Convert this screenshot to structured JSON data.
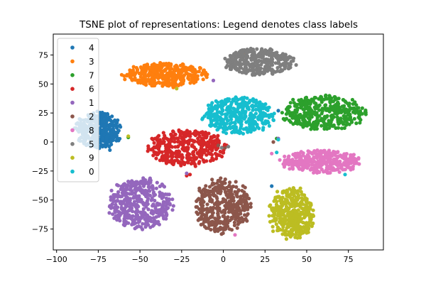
{
  "chart_data": {
    "type": "scatter",
    "title": "TSNE plot of representations: Legend denotes class labels",
    "xlabel": "",
    "ylabel": "",
    "xlim": [
      -102,
      96
    ],
    "ylim": [
      -93,
      93
    ],
    "xticks": [
      -100,
      -75,
      -50,
      -25,
      0,
      25,
      50,
      75
    ],
    "yticks": [
      -75,
      -50,
      -25,
      0,
      25,
      50,
      75
    ],
    "xtick_labels": [
      "−100",
      "−75",
      "−50",
      "−25",
      "0",
      "25",
      "50",
      "75"
    ],
    "ytick_labels": [
      "−75",
      "−50",
      "−25",
      "0",
      "25",
      "50",
      "75"
    ],
    "grid": false,
    "legend_position": "upper-left",
    "legend_order": [
      "4",
      "3",
      "7",
      "6",
      "1",
      "2",
      "8",
      "5",
      "9",
      "0"
    ],
    "series": [
      {
        "name": "4",
        "color": "#1f77b4",
        "clusters": [
          {
            "cx": -75,
            "cy": 10,
            "rx": 14,
            "ry": 16,
            "n": 380
          }
        ],
        "stray": [
          [
            33,
            27
          ],
          [
            29,
            -38
          ],
          [
            -68,
            -7
          ]
        ]
      },
      {
        "name": "3",
        "color": "#ff7f0e",
        "clusters": [
          {
            "cx": -35,
            "cy": 58,
            "rx": 26,
            "ry": 10,
            "n": 360
          }
        ],
        "stray": [
          [
            12,
            77
          ],
          [
            -30,
            47
          ]
        ]
      },
      {
        "name": "7",
        "color": "#2ca02c",
        "clusters": [
          {
            "cx": 60,
            "cy": 25,
            "rx": 26,
            "ry": 15,
            "n": 380
          }
        ],
        "stray": [
          [
            32,
            3
          ],
          [
            -57,
            4
          ]
        ]
      },
      {
        "name": "6",
        "color": "#d62728",
        "clusters": [
          {
            "cx": -22,
            "cy": -5,
            "rx": 24,
            "ry": 16,
            "n": 380
          }
        ],
        "stray": [
          [
            -20,
            -28
          ],
          [
            -22,
            -29
          ]
        ]
      },
      {
        "name": "1",
        "color": "#9467bd",
        "clusters": [
          {
            "cx": -50,
            "cy": -53,
            "rx": 20,
            "ry": 23,
            "n": 420
          }
        ],
        "stray": [
          [
            -6,
            53
          ],
          [
            33,
            3
          ],
          [
            -22,
            -27
          ]
        ]
      },
      {
        "name": "2",
        "color": "#8c564b",
        "clusters": [
          {
            "cx": -1,
            "cy": -55,
            "rx": 18,
            "ry": 24,
            "n": 380
          }
        ],
        "stray": [
          [
            -3,
            -3
          ],
          [
            30,
            0
          ],
          [
            1,
            -5
          ]
        ]
      },
      {
        "name": "8",
        "color": "#e377c2",
        "clusters": [
          {
            "cx": 59,
            "cy": -17,
            "rx": 25,
            "ry": 10,
            "n": 340
          }
        ],
        "stray": [
          [
            7,
            -80
          ],
          [
            29,
            -10
          ]
        ]
      },
      {
        "name": "5",
        "color": "#7f7f7f",
        "clusters": [
          {
            "cx": 22,
            "cy": 69,
            "rx": 22,
            "ry": 12,
            "n": 340
          }
        ],
        "stray": [
          [
            -1,
            -5
          ],
          [
            3,
            -4
          ]
        ]
      },
      {
        "name": "9",
        "color": "#bcbd22",
        "clusters": [
          {
            "cx": 41,
            "cy": -62,
            "rx": 14,
            "ry": 23,
            "n": 400
          }
        ],
        "stray": [
          [
            -57,
            5
          ],
          [
            -28,
            46
          ]
        ]
      },
      {
        "name": "0",
        "color": "#17becf",
        "clusters": [
          {
            "cx": 9,
            "cy": 23,
            "rx": 22,
            "ry": 16,
            "n": 380
          }
        ],
        "stray": [
          [
            32,
            -9
          ],
          [
            73,
            -28
          ],
          [
            33,
            2
          ]
        ]
      }
    ]
  }
}
